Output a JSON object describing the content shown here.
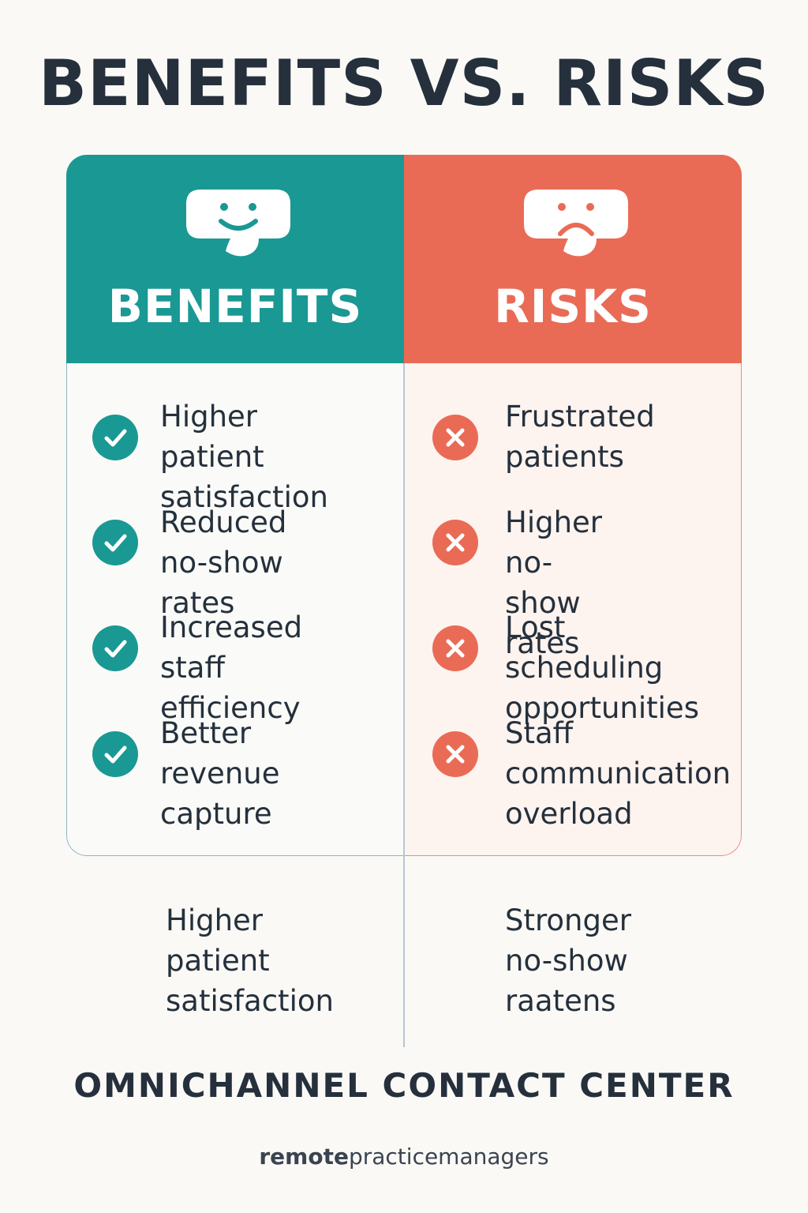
{
  "title": "BENEFITS VS. RISKS",
  "colors": {
    "benefits": "#1a9894",
    "risks": "#ea6b55",
    "text": "#25303c",
    "background": "#faf9f6"
  },
  "benefits": {
    "heading": "BENEFITS",
    "icon": "smiley-face-icon",
    "items": [
      "Higher patient\nsatisfaction",
      "Reduced\nno-show rates",
      "Increased\nstaff efficiency",
      "Better revenue\ncapture"
    ],
    "footer": "Higher\npatient\nsatisfaction"
  },
  "risks": {
    "heading": "RISKS",
    "icon": "sad-face-icon",
    "items": [
      "Frustrated\npatients",
      "Higher no-\nshow rates",
      "Lost scheduling\nopportunities",
      "Staff\ncommunication\noverload"
    ],
    "footer": "Stronger\nno-show\nraatens"
  },
  "bottom_title": "OMNICHANNEL CONTACT CENTER",
  "brand": {
    "bold": "remote",
    "regular": "practicemanagers"
  }
}
